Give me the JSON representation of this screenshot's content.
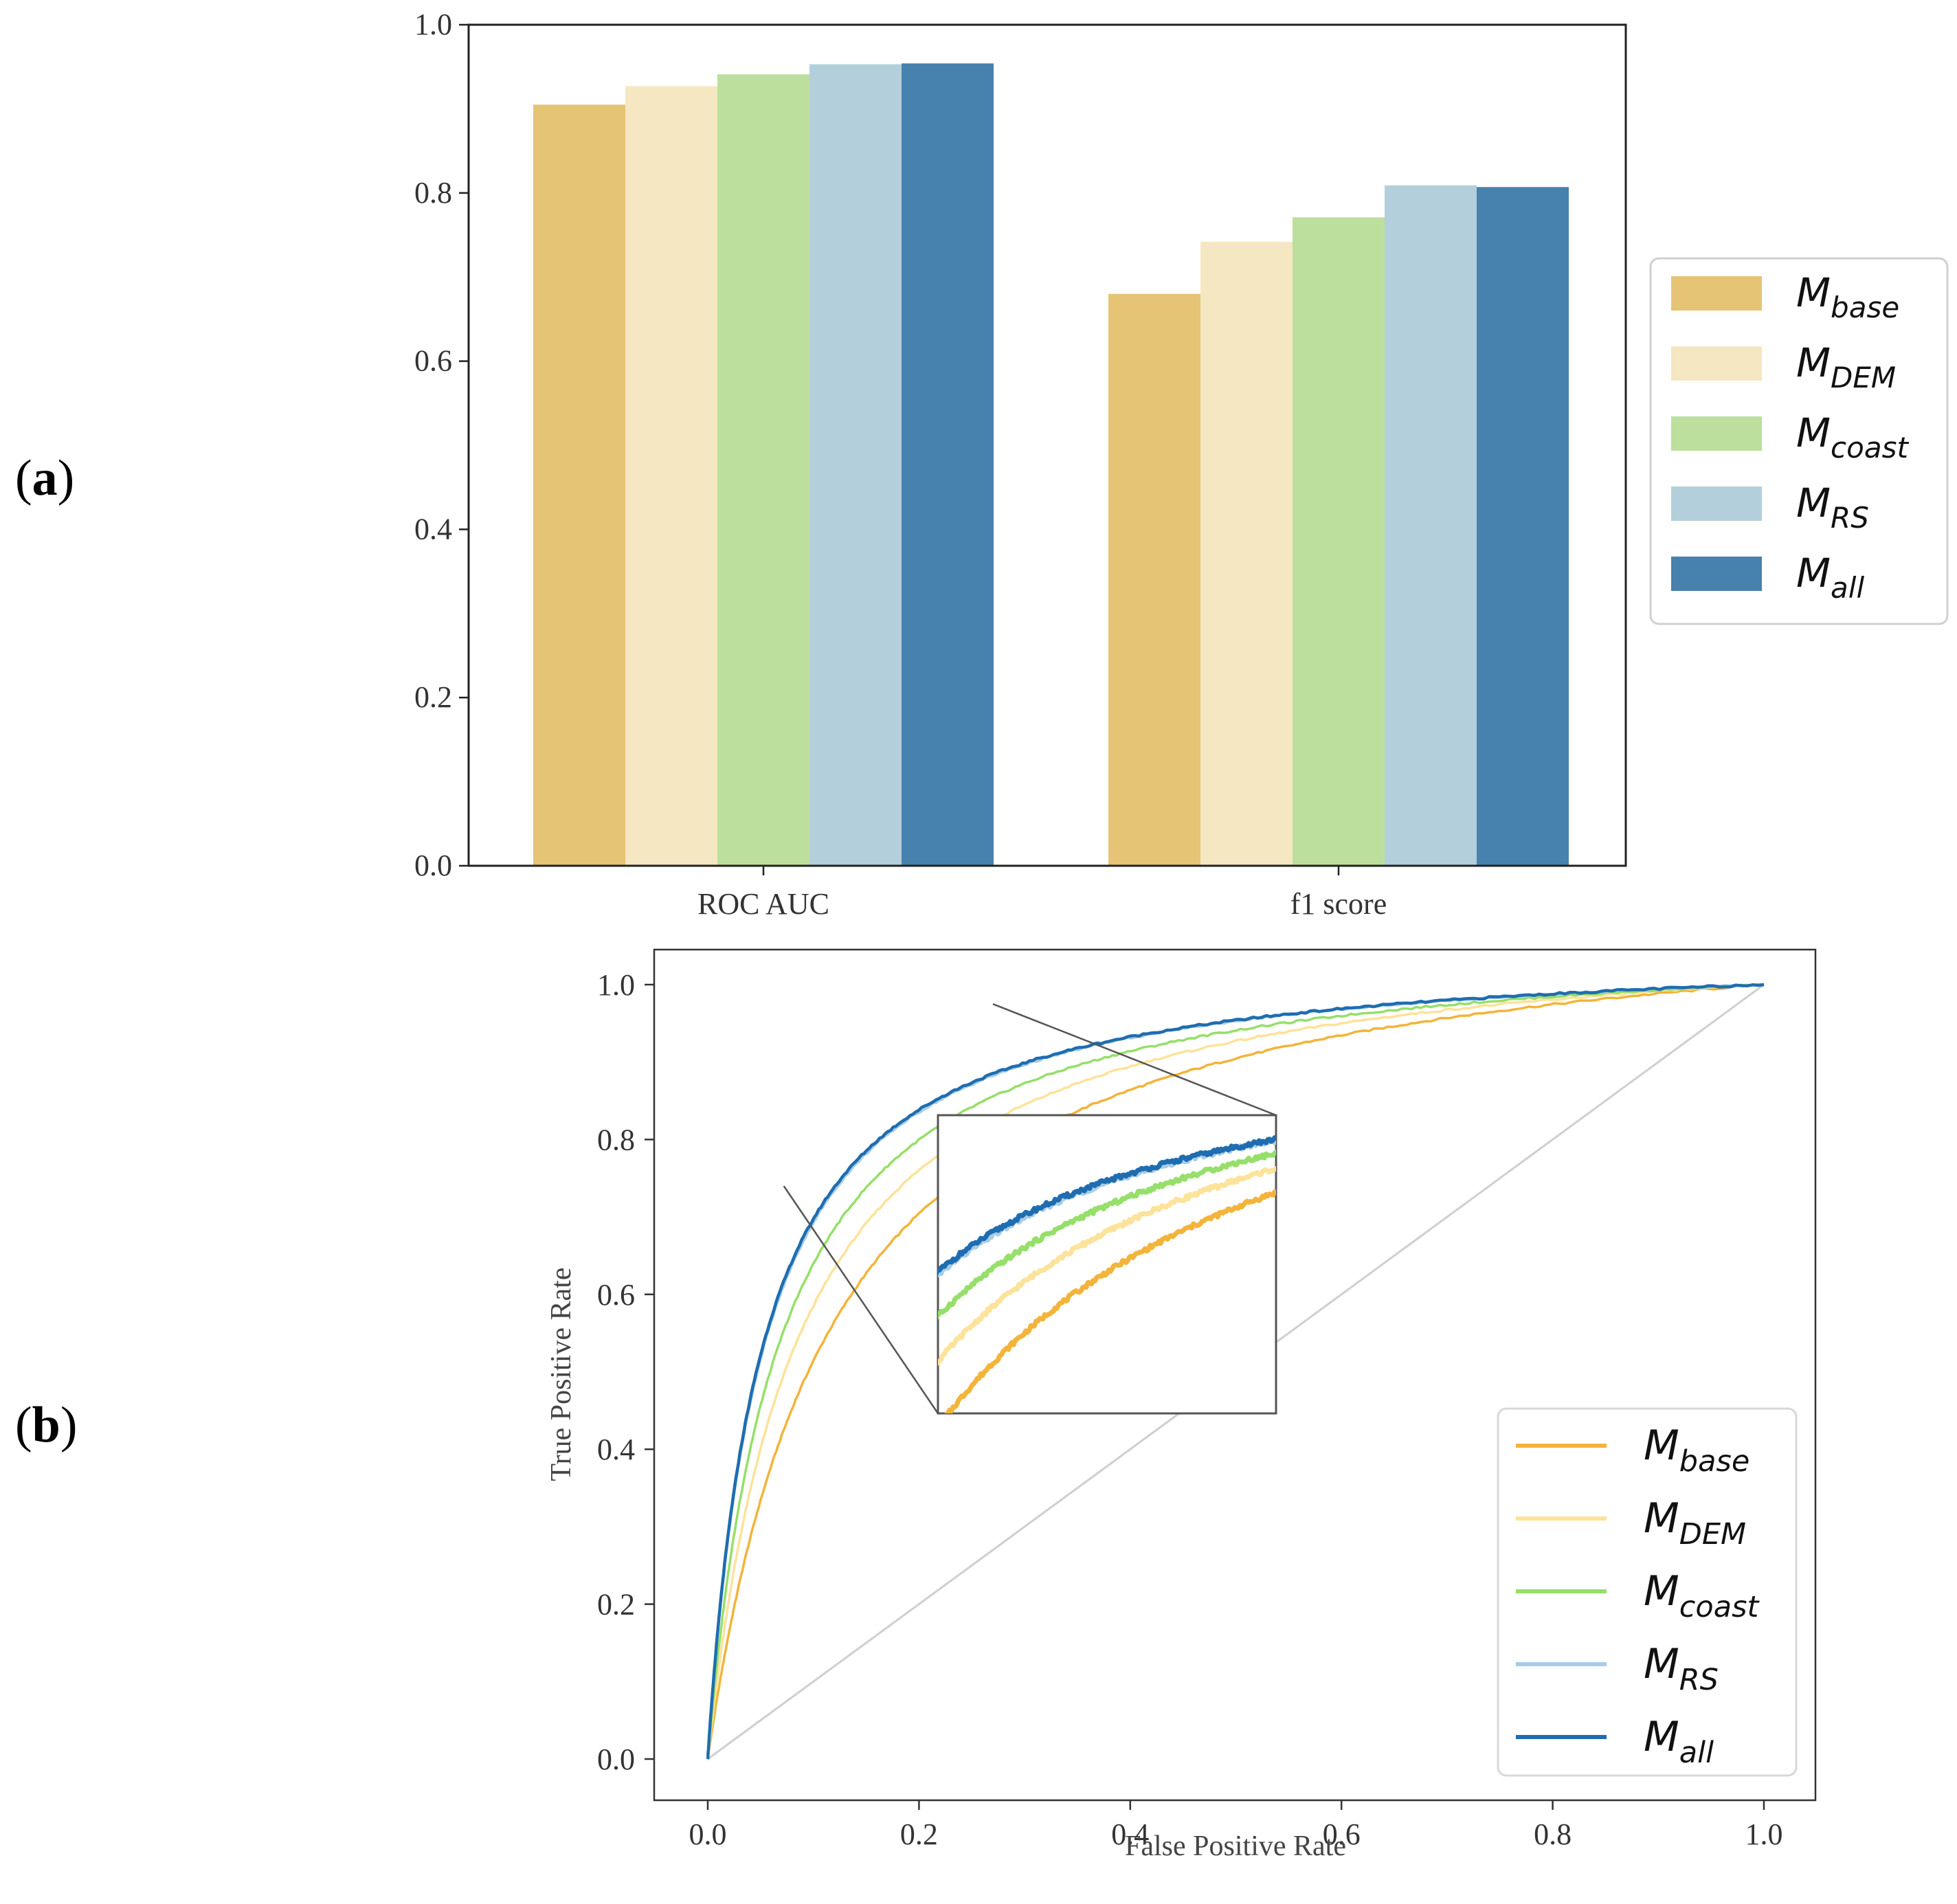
{
  "figure": {
    "panel_a_label": {
      "open": "(",
      "letter": "a",
      "close": ")"
    },
    "panel_b_label": {
      "open": "(",
      "letter": "b",
      "close": ")"
    }
  },
  "colors": {
    "M_base": "#e6c476",
    "M_DEM": "#f5e7c1",
    "M_coast": "#bddf9d",
    "M_RS": "#b3cfdc",
    "M_all": "#4781ad",
    "roc_base": "#f3b43a",
    "roc_DEM": "#fde29a",
    "roc_coast": "#96df6a",
    "roc_RS": "#a6cde6",
    "roc_all": "#1f6db0",
    "diagonal": "#cfcfcf"
  },
  "chart_data": [
    {
      "type": "bar",
      "panel": "a",
      "categories": [
        "ROC AUC",
        "f1 score"
      ],
      "series": [
        {
          "name": "M",
          "sub": "base",
          "values": [
            0.905,
            0.68
          ]
        },
        {
          "name": "M",
          "sub": "DEM",
          "values": [
            0.927,
            0.742
          ]
        },
        {
          "name": "M",
          "sub": "coast",
          "values": [
            0.941,
            0.771
          ]
        },
        {
          "name": "M",
          "sub": "RS",
          "values": [
            0.953,
            0.809
          ]
        },
        {
          "name": "M",
          "sub": "all",
          "values": [
            0.954,
            0.807
          ]
        }
      ],
      "ylim": [
        0,
        1.0
      ],
      "yticks": [
        "0.0",
        "0.2",
        "0.4",
        "0.6",
        "0.8",
        "1.0"
      ],
      "legend_position": "right"
    },
    {
      "type": "line",
      "panel": "b",
      "xlabel": "False Positive Rate",
      "ylabel": "True Positive Rate",
      "xlim": [
        0,
        1.0
      ],
      "ylim": [
        0,
        1.0
      ],
      "xticks": [
        "0.0",
        "0.2",
        "0.4",
        "0.6",
        "0.8",
        "1.0"
      ],
      "yticks": [
        "0.0",
        "0.2",
        "0.4",
        "0.6",
        "0.8",
        "1.0"
      ],
      "series": [
        {
          "name": "M",
          "sub": "base",
          "auc": 0.905
        },
        {
          "name": "M",
          "sub": "DEM",
          "auc": 0.927
        },
        {
          "name": "M",
          "sub": "coast",
          "auc": 0.941
        },
        {
          "name": "M",
          "sub": "RS",
          "auc": 0.953
        },
        {
          "name": "M",
          "sub": "all",
          "auc": 0.954
        }
      ],
      "inset": {
        "x_range": [
          0.22,
          0.54
        ],
        "y_range": [
          0.74,
          0.98
        ]
      },
      "legend_position": "lower-right"
    }
  ]
}
